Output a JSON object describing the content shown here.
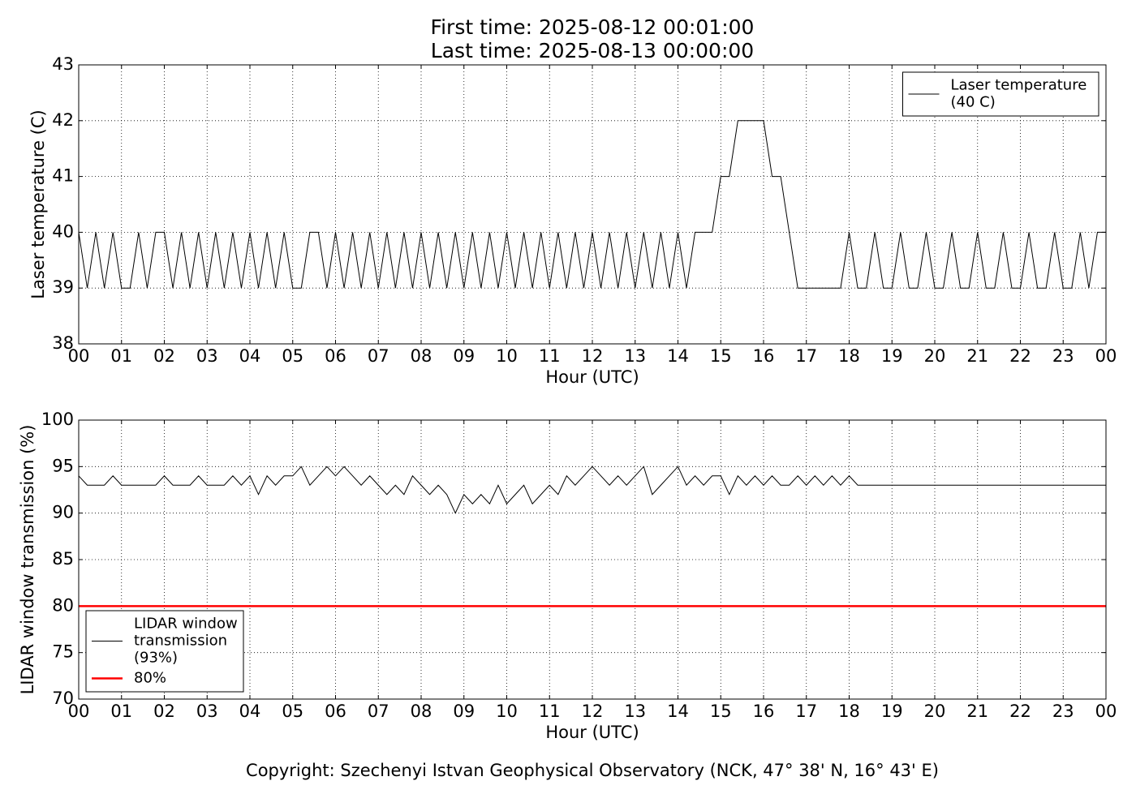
{
  "title": "First time: 2025-08-12 00:01:00",
  "subtitle": "Last time: 2025-08-13 00:00:00",
  "footer": "Copyright: Szechenyi Istvan Geophysical Observatory (NCK, 47° 38' N, 16° 43' E)",
  "chart_data": [
    {
      "type": "line",
      "xlabel": "Hour (UTC)",
      "ylabel": "Laser temperature (C)",
      "xlim": [
        0,
        24
      ],
      "ylim": [
        38,
        43
      ],
      "yticks": [
        38,
        39,
        40,
        41,
        42,
        43
      ],
      "xticks": [
        {
          "value": 0,
          "label": "00"
        },
        {
          "value": 1,
          "label": "01"
        },
        {
          "value": 2,
          "label": "02"
        },
        {
          "value": 3,
          "label": "03"
        },
        {
          "value": 4,
          "label": "04"
        },
        {
          "value": 5,
          "label": "05"
        },
        {
          "value": 6,
          "label": "06"
        },
        {
          "value": 7,
          "label": "07"
        },
        {
          "value": 8,
          "label": "08"
        },
        {
          "value": 9,
          "label": "09"
        },
        {
          "value": 10,
          "label": "10"
        },
        {
          "value": 11,
          "label": "11"
        },
        {
          "value": 12,
          "label": "12"
        },
        {
          "value": 13,
          "label": "13"
        },
        {
          "value": 14,
          "label": "14"
        },
        {
          "value": 15,
          "label": "15"
        },
        {
          "value": 16,
          "label": "16"
        },
        {
          "value": 17,
          "label": "17"
        },
        {
          "value": 18,
          "label": "18"
        },
        {
          "value": 19,
          "label": "19"
        },
        {
          "value": 20,
          "label": "20"
        },
        {
          "value": 21,
          "label": "21"
        },
        {
          "value": 22,
          "label": "22"
        },
        {
          "value": 23,
          "label": "23"
        },
        {
          "value": 24,
          "label": "00"
        }
      ],
      "grid": true,
      "legend": "upper right",
      "x": [
        0,
        0.2,
        0.4,
        0.6,
        0.8,
        1,
        1.2,
        1.4,
        1.6,
        1.8,
        2,
        2.2,
        2.4,
        2.6,
        2.8,
        3,
        3.2,
        3.4,
        3.6,
        3.8,
        4,
        4.2,
        4.4,
        4.6,
        4.8,
        5,
        5.2,
        5.4,
        5.6,
        5.8,
        6,
        6.2,
        6.4,
        6.6,
        6.8,
        7,
        7.2,
        7.4,
        7.6,
        7.8,
        8,
        8.2,
        8.4,
        8.6,
        8.8,
        9,
        9.2,
        9.4,
        9.6,
        9.8,
        10,
        10.2,
        10.4,
        10.6,
        10.8,
        11,
        11.2,
        11.4,
        11.6,
        11.8,
        12,
        12.2,
        12.4,
        12.6,
        12.8,
        13,
        13.2,
        13.4,
        13.6,
        13.8,
        14,
        14.2,
        14.4,
        14.6,
        14.8,
        15,
        15.2,
        15.4,
        15.6,
        15.8,
        16,
        16.2,
        16.4,
        16.6,
        16.8,
        17,
        17.2,
        17.4,
        17.6,
        17.8,
        18,
        18.2,
        18.4,
        18.6,
        18.8,
        19,
        19.2,
        19.4,
        19.6,
        19.8,
        20,
        20.2,
        20.4,
        20.6,
        20.8,
        21,
        21.2,
        21.4,
        21.6,
        21.8,
        22,
        22.2,
        22.4,
        22.6,
        22.8,
        23,
        23.2,
        23.4,
        23.6,
        23.8,
        24
      ],
      "series": [
        {
          "name": "Laser temperature\n(40 C)",
          "color": "#000000",
          "values": [
            40,
            39,
            40,
            39,
            40,
            39,
            39,
            40,
            39,
            40,
            40,
            39,
            40,
            39,
            40,
            39,
            40,
            39,
            40,
            39,
            40,
            39,
            40,
            39,
            40,
            39,
            39,
            40,
            40,
            39,
            40,
            39,
            40,
            39,
            40,
            39,
            40,
            39,
            40,
            39,
            40,
            39,
            40,
            39,
            40,
            39,
            40,
            39,
            40,
            39,
            40,
            39,
            40,
            39,
            40,
            39,
            40,
            39,
            40,
            39,
            40,
            39,
            40,
            39,
            40,
            39,
            40,
            39,
            40,
            39,
            40,
            39,
            40,
            40,
            40,
            41,
            41,
            42,
            42,
            42,
            42,
            41,
            41,
            40,
            39,
            39,
            39,
            39,
            39,
            39,
            40,
            39,
            39,
            40,
            39,
            39,
            40,
            39,
            39,
            40,
            39,
            39,
            40,
            39,
            39,
            40,
            39,
            39,
            40,
            39,
            39,
            40,
            39,
            39,
            40,
            39,
            39,
            40,
            39,
            40,
            40
          ]
        }
      ]
    },
    {
      "type": "line",
      "xlabel": "Hour (UTC)",
      "ylabel": "LIDAR window transmission (%)",
      "xlim": [
        0,
        24
      ],
      "ylim": [
        70,
        100
      ],
      "yticks": [
        70,
        75,
        80,
        85,
        90,
        95,
        100
      ],
      "xticks": [
        {
          "value": 0,
          "label": "00"
        },
        {
          "value": 1,
          "label": "01"
        },
        {
          "value": 2,
          "label": "02"
        },
        {
          "value": 3,
          "label": "03"
        },
        {
          "value": 4,
          "label": "04"
        },
        {
          "value": 5,
          "label": "05"
        },
        {
          "value": 6,
          "label": "06"
        },
        {
          "value": 7,
          "label": "07"
        },
        {
          "value": 8,
          "label": "08"
        },
        {
          "value": 9,
          "label": "09"
        },
        {
          "value": 10,
          "label": "10"
        },
        {
          "value": 11,
          "label": "11"
        },
        {
          "value": 12,
          "label": "12"
        },
        {
          "value": 13,
          "label": "13"
        },
        {
          "value": 14,
          "label": "14"
        },
        {
          "value": 15,
          "label": "15"
        },
        {
          "value": 16,
          "label": "16"
        },
        {
          "value": 17,
          "label": "17"
        },
        {
          "value": 18,
          "label": "18"
        },
        {
          "value": 19,
          "label": "19"
        },
        {
          "value": 20,
          "label": "20"
        },
        {
          "value": 21,
          "label": "21"
        },
        {
          "value": 22,
          "label": "22"
        },
        {
          "value": 23,
          "label": "23"
        },
        {
          "value": 24,
          "label": "00"
        }
      ],
      "grid": true,
      "legend": "lower left",
      "x": [
        0,
        0.2,
        0.4,
        0.6,
        0.8,
        1,
        1.2,
        1.4,
        1.6,
        1.8,
        2,
        2.2,
        2.4,
        2.6,
        2.8,
        3,
        3.2,
        3.4,
        3.6,
        3.8,
        4,
        4.2,
        4.4,
        4.6,
        4.8,
        5,
        5.2,
        5.4,
        5.6,
        5.8,
        6,
        6.2,
        6.4,
        6.6,
        6.8,
        7,
        7.2,
        7.4,
        7.6,
        7.8,
        8,
        8.2,
        8.4,
        8.6,
        8.8,
        9,
        9.2,
        9.4,
        9.6,
        9.8,
        10,
        10.2,
        10.4,
        10.6,
        10.8,
        11,
        11.2,
        11.4,
        11.6,
        11.8,
        12,
        12.2,
        12.4,
        12.6,
        12.8,
        13,
        13.2,
        13.4,
        13.6,
        13.8,
        14,
        14.2,
        14.4,
        14.6,
        14.8,
        15,
        15.2,
        15.4,
        15.6,
        15.8,
        16,
        16.2,
        16.4,
        16.6,
        16.8,
        17,
        17.2,
        17.4,
        17.6,
        17.8,
        18,
        18.2,
        18.4,
        18.6,
        18.8,
        19,
        19.2,
        19.4,
        19.6,
        19.8,
        20,
        20.2,
        20.4,
        20.6,
        20.8,
        21,
        21.2,
        21.4,
        21.6,
        21.8,
        22,
        22.2,
        22.4,
        22.6,
        22.8,
        23,
        23.2,
        23.4,
        23.6,
        23.8,
        24
      ],
      "series": [
        {
          "name": "LIDAR window\ntransmission\n(93%)",
          "color": "#000000",
          "values": [
            94,
            93,
            93,
            93,
            94,
            93,
            93,
            93,
            93,
            93,
            94,
            93,
            93,
            93,
            94,
            93,
            93,
            93,
            94,
            93,
            94,
            92,
            94,
            93,
            94,
            94,
            95,
            93,
            94,
            95,
            94,
            95,
            94,
            93,
            94,
            93,
            92,
            93,
            92,
            94,
            93,
            92,
            93,
            92,
            90,
            92,
            91,
            92,
            91,
            93,
            91,
            92,
            93,
            91,
            92,
            93,
            92,
            94,
            93,
            94,
            95,
            94,
            93,
            94,
            93,
            94,
            95,
            92,
            93,
            94,
            95,
            93,
            94,
            93,
            94,
            94,
            92,
            94,
            93,
            94,
            93,
            94,
            93,
            93,
            94,
            93,
            94,
            93,
            94,
            93,
            94,
            93,
            93,
            93,
            93,
            93,
            93,
            93,
            93,
            93,
            93,
            93,
            93,
            93,
            93,
            93,
            93,
            93,
            93,
            93,
            93,
            93,
            93,
            93,
            93,
            93,
            93,
            93,
            93,
            93,
            93
          ]
        },
        {
          "name": "80%",
          "color": "#ff0000",
          "x": [
            0,
            24
          ],
          "values": [
            80,
            80
          ]
        }
      ]
    }
  ]
}
